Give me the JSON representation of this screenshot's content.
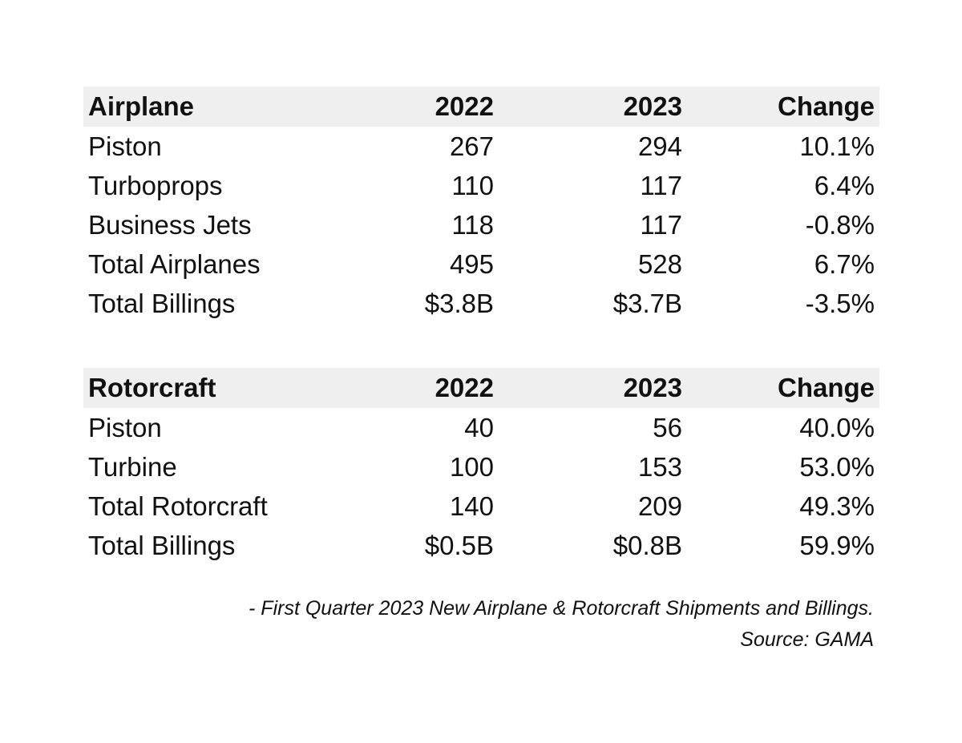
{
  "airplane": {
    "headers": [
      "Airplane",
      "2022",
      "2023",
      "Change"
    ],
    "rows": [
      [
        "Piston",
        "267",
        "294",
        "10.1%"
      ],
      [
        "Turboprops",
        "110",
        "117",
        "6.4%"
      ],
      [
        "Business Jets",
        "118",
        "117",
        "-0.8%"
      ],
      [
        "Total Airplanes",
        "495",
        "528",
        "6.7%"
      ],
      [
        "Total Billings",
        "$3.8B",
        "$3.7B",
        "-3.5%"
      ]
    ]
  },
  "rotorcraft": {
    "headers": [
      "Rotorcraft",
      "2022",
      "2023",
      "Change"
    ],
    "rows": [
      [
        "Piston",
        "40",
        "56",
        "40.0%"
      ],
      [
        "Turbine",
        "100",
        "153",
        "53.0%"
      ],
      [
        "Total Rotorcraft",
        "140",
        "209",
        "49.3%"
      ],
      [
        "Total Billings",
        "$0.5B",
        "$0.8B",
        "59.9%"
      ]
    ]
  },
  "caption": {
    "line1": "- First Quarter 2023 New Airplane & Rotorcraft Shipments and Billings.",
    "line2": "Source: GAMA"
  }
}
